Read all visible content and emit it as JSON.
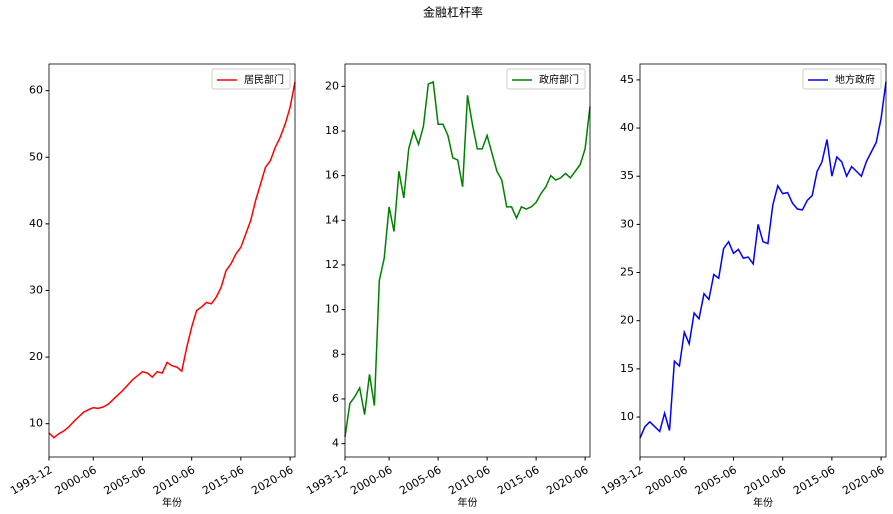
{
  "title": "金融杠杆率",
  "chart_data": [
    {
      "type": "line",
      "xlabel": "年份",
      "categories": [
        "1993-12",
        "1994-12",
        "1995-12",
        "1996-12",
        "1997-12",
        "1998-06",
        "1998-12",
        "1999-06",
        "1999-12",
        "2000-06",
        "2000-12",
        "2001-06",
        "2001-12",
        "2002-06",
        "2002-12",
        "2003-06",
        "2003-12",
        "2004-06",
        "2004-12",
        "2005-06",
        "2005-12",
        "2006-06",
        "2006-12",
        "2007-06",
        "2007-12",
        "2008-06",
        "2008-12",
        "2009-06",
        "2009-12",
        "2010-06",
        "2010-12",
        "2011-06",
        "2011-12",
        "2012-06",
        "2012-12",
        "2013-06",
        "2013-12",
        "2014-06",
        "2014-12",
        "2015-06",
        "2015-12",
        "2016-06",
        "2016-12",
        "2017-06",
        "2017-12",
        "2018-06",
        "2018-12",
        "2019-06",
        "2019-12",
        "2020-06",
        "2020-12"
      ],
      "xticks": [
        "1993-12",
        "2000-06",
        "2005-06",
        "2010-06",
        "2015-06",
        "2020-06"
      ],
      "ylim": [
        5,
        64
      ],
      "yticks": [
        10,
        20,
        30,
        40,
        50,
        60
      ],
      "grid": false,
      "legend": "upper right",
      "series": [
        {
          "name": "居民部门",
          "color": "#ff0000",
          "values": [
            8.6,
            7.9,
            8.5,
            8.9,
            9.5,
            10.3,
            11.0,
            11.7,
            12.1,
            12.4,
            12.3,
            12.5,
            12.9,
            13.6,
            14.3,
            15.0,
            15.8,
            16.6,
            17.2,
            17.8,
            17.6,
            17.0,
            17.8,
            17.6,
            19.2,
            18.7,
            18.5,
            17.9,
            21.5,
            24.5,
            27.0,
            27.5,
            28.2,
            28.0,
            29.0,
            30.5,
            33.0,
            34.0,
            35.5,
            36.5,
            38.5,
            40.5,
            43.5,
            46.0,
            48.5,
            49.5,
            51.5,
            53.0,
            55.0,
            57.5,
            61.3
          ]
        }
      ]
    },
    {
      "type": "line",
      "xlabel": "年份",
      "categories": [
        "1993-12",
        "1994-12",
        "1995-12",
        "1996-12",
        "1997-12",
        "1998-06",
        "1998-12",
        "1999-06",
        "1999-12",
        "2000-06",
        "2000-12",
        "2001-06",
        "2001-12",
        "2002-06",
        "2002-12",
        "2003-06",
        "2003-12",
        "2004-06",
        "2004-12",
        "2005-06",
        "2005-12",
        "2006-06",
        "2006-12",
        "2007-06",
        "2007-12",
        "2008-06",
        "2008-12",
        "2009-06",
        "2009-12",
        "2010-06",
        "2010-12",
        "2011-06",
        "2011-12",
        "2012-06",
        "2012-12",
        "2013-06",
        "2013-12",
        "2014-06",
        "2014-12",
        "2015-06",
        "2015-12",
        "2016-06",
        "2016-12",
        "2017-06",
        "2017-12",
        "2018-06",
        "2018-12",
        "2019-06",
        "2019-12",
        "2020-06",
        "2020-12"
      ],
      "xticks": [
        "1993-12",
        "2000-06",
        "2005-06",
        "2010-06",
        "2015-06",
        "2020-06"
      ],
      "ylim": [
        3.4,
        21
      ],
      "yticks": [
        4,
        6,
        8,
        10,
        12,
        14,
        16,
        18,
        20
      ],
      "grid": false,
      "legend": "upper right",
      "series": [
        {
          "name": "政府部门",
          "color": "#008000",
          "values": [
            4.3,
            5.8,
            6.1,
            6.5,
            5.3,
            7.1,
            5.7,
            11.3,
            12.3,
            14.6,
            13.5,
            16.2,
            15.0,
            17.2,
            18.0,
            17.4,
            18.2,
            20.1,
            20.2,
            18.3,
            18.3,
            17.8,
            16.8,
            16.7,
            15.5,
            19.6,
            18.3,
            17.2,
            17.2,
            17.8,
            17.0,
            16.2,
            15.8,
            14.6,
            14.6,
            14.1,
            14.6,
            14.5,
            14.6,
            14.8,
            15.2,
            15.5,
            16.0,
            15.8,
            15.9,
            16.1,
            15.9,
            16.2,
            16.5,
            17.2,
            19.1
          ]
        }
      ]
    },
    {
      "type": "line",
      "xlabel": "年份",
      "categories": [
        "1993-12",
        "1994-12",
        "1995-12",
        "1996-12",
        "1997-12",
        "1998-06",
        "1998-12",
        "1999-06",
        "1999-12",
        "2000-06",
        "2000-12",
        "2001-06",
        "2001-12",
        "2002-06",
        "2002-12",
        "2003-06",
        "2003-12",
        "2004-06",
        "2004-12",
        "2005-06",
        "2005-12",
        "2006-06",
        "2006-12",
        "2007-06",
        "2007-12",
        "2008-06",
        "2008-12",
        "2009-06",
        "2009-12",
        "2010-06",
        "2010-12",
        "2011-06",
        "2011-12",
        "2012-06",
        "2012-12",
        "2013-06",
        "2013-12",
        "2014-06",
        "2014-12",
        "2015-06",
        "2015-12",
        "2016-06",
        "2016-12",
        "2017-06",
        "2017-12",
        "2018-06",
        "2018-12",
        "2019-06",
        "2019-12",
        "2020-06",
        "2020-12"
      ],
      "xticks": [
        "1993-12",
        "2000-06",
        "2005-06",
        "2010-06",
        "2015-06",
        "2020-06"
      ],
      "ylim": [
        5.85,
        46.65
      ],
      "yticks": [
        10,
        15,
        20,
        25,
        30,
        35,
        40,
        45
      ],
      "grid": false,
      "legend": "upper right",
      "series": [
        {
          "name": "地方政府",
          "color": "#0000ff",
          "values": [
            7.8,
            9.0,
            9.5,
            9.0,
            8.5,
            10.4,
            8.6,
            15.8,
            15.3,
            18.8,
            17.6,
            20.8,
            20.2,
            22.8,
            22.2,
            24.8,
            24.4,
            27.5,
            28.2,
            27.0,
            27.4,
            26.5,
            26.6,
            25.9,
            30.0,
            28.2,
            28.0,
            32.0,
            34.0,
            33.2,
            33.3,
            32.2,
            31.6,
            31.5,
            32.5,
            33.0,
            35.5,
            36.5,
            38.8,
            35.0,
            37.0,
            36.5,
            35.0,
            36.0,
            35.5,
            35.0,
            36.5,
            37.5,
            38.5,
            41.0,
            44.8
          ]
        }
      ]
    }
  ]
}
